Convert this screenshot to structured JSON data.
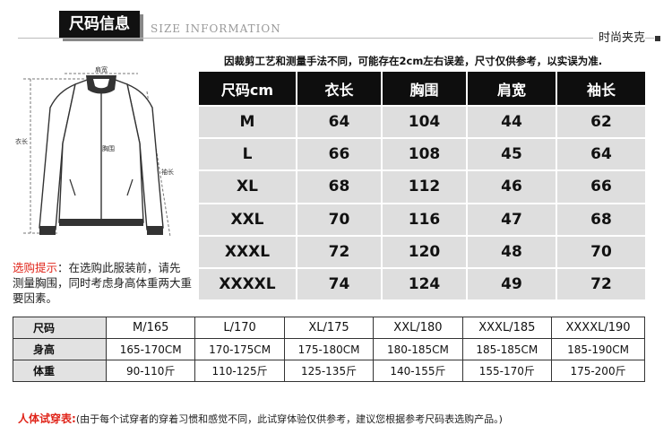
{
  "header": {
    "title": "尺码信息",
    "subtitle": "SIZE INFORMATION",
    "category": "时尚夹克"
  },
  "note": "因裁剪工艺和测量手法不同，可能存在2cm左右误差，尺寸仅供参考，以实误为准.",
  "diagram": {
    "shoulder_label": "肩宽",
    "length_label": "衣长",
    "chest_label": "胸围",
    "sleeve_label": "袖长"
  },
  "tip": {
    "label": "选购提示",
    "text": "：在选购此服装前，请先测量胸围，同时考虑身高体重两大重要因素。"
  },
  "size_table": {
    "headers": [
      "尺码cm",
      "衣长",
      "胸围",
      "肩宽",
      "袖长"
    ],
    "rows": [
      [
        "M",
        "64",
        "104",
        "44",
        "62"
      ],
      [
        "L",
        "66",
        "108",
        "45",
        "64"
      ],
      [
        "XL",
        "68",
        "112",
        "46",
        "66"
      ],
      [
        "XXL",
        "70",
        "116",
        "47",
        "68"
      ],
      [
        "XXXL",
        "72",
        "120",
        "48",
        "70"
      ],
      [
        "XXXXL",
        "74",
        "124",
        "49",
        "72"
      ]
    ]
  },
  "ref_table": {
    "rows": [
      {
        "label": "尺码",
        "cells": [
          "M/165",
          "L/170",
          "XL/175",
          "XXL/180",
          "XXXL/185",
          "XXXXL/190"
        ]
      },
      {
        "label": "身高",
        "cells": [
          "165-170CM",
          "170-175CM",
          "175-180CM",
          "180-185CM",
          "185-185CM",
          "185-190CM"
        ]
      },
      {
        "label": "体重",
        "cells": [
          "90-110斤",
          "110-125斤",
          "125-135斤",
          "140-155斤",
          "155-170斤",
          "175-200斤"
        ]
      }
    ]
  },
  "footer": {
    "label": "人体试穿表:",
    "text": "(由于每个试穿者的穿着习惯和感觉不同，此试穿体验仅供参考，建议您根据参考尺码表选购产品。)"
  }
}
